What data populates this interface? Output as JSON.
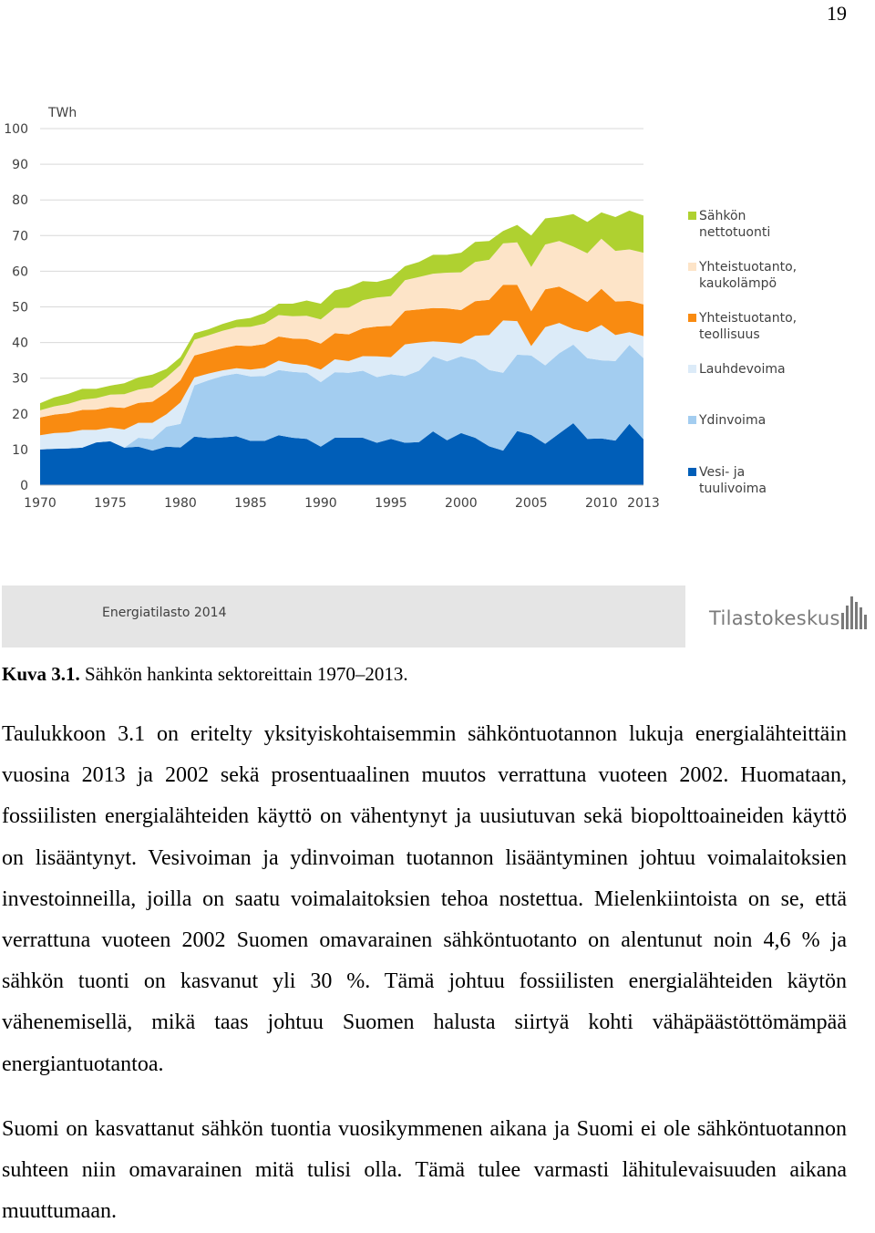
{
  "page_number": "19",
  "figure": {
    "source_label": "Energiatilasto 2014",
    "logo_text": "Tilastokeskus",
    "caption_label": "Kuva 3.1.",
    "caption_text": " Sähkön hankinta sektoreittain 1970–2013."
  },
  "chart_data": {
    "type": "area",
    "stacked": true,
    "title": "",
    "ylabel": "TWh",
    "xlabel": "",
    "ylim": [
      0,
      100
    ],
    "yticks": [
      0,
      10,
      20,
      30,
      40,
      50,
      60,
      70,
      80,
      90,
      100
    ],
    "xticks": [
      1970,
      1975,
      1980,
      1985,
      1990,
      1995,
      2000,
      2005,
      2010,
      2013
    ],
    "xlim": [
      1970,
      2013
    ],
    "grid": "horizontal",
    "legend_position": "right",
    "x": [
      1970,
      1971,
      1972,
      1973,
      1974,
      1975,
      1976,
      1977,
      1978,
      1979,
      1980,
      1981,
      1982,
      1983,
      1984,
      1985,
      1986,
      1987,
      1988,
      1989,
      1990,
      1991,
      1992,
      1993,
      1994,
      1995,
      1996,
      1997,
      1998,
      1999,
      2000,
      2001,
      2002,
      2003,
      2004,
      2005,
      2006,
      2007,
      2008,
      2009,
      2010,
      2011,
      2012,
      2013
    ],
    "series": [
      {
        "name": "Vesi- ja tuulivoima",
        "color": "#005eb8",
        "values": [
          10,
          10.2,
          10.3,
          10.5,
          12,
          12.3,
          10.5,
          10.8,
          9.7,
          10.8,
          10.6,
          13.6,
          13.2,
          13.4,
          13.7,
          12.4,
          12.4,
          14.0,
          13.3,
          13.0,
          10.8,
          13.3,
          13.3,
          13.3,
          11.9,
          13.0,
          11.9,
          12.1,
          15.1,
          12.6,
          14.6,
          13.3,
          10.9,
          9.7,
          15.2,
          14.1,
          11.6,
          14.5,
          17.4,
          13.0,
          13.1,
          12.5,
          17.2,
          12.9
        ]
      },
      {
        "name": "Ydinvoima",
        "color": "#a3cdf0",
        "values": [
          0,
          0,
          0,
          0,
          0,
          0,
          0,
          2.5,
          3.2,
          5.6,
          6.6,
          14.4,
          16.2,
          17.2,
          17.6,
          18.1,
          18.2,
          18.3,
          18.5,
          18.5,
          18.1,
          18.4,
          18.2,
          18.8,
          18.4,
          18.1,
          18.7,
          20.0,
          21.0,
          22.1,
          21.5,
          21.8,
          21.4,
          21.8,
          21.4,
          22.3,
          22.0,
          22.5,
          22.0,
          22.6,
          21.9,
          22.3,
          22.1,
          22.7
        ]
      },
      {
        "name": "Lauhdevoima",
        "color": "#dcebf8",
        "values": [
          4,
          4.4,
          4.5,
          5.0,
          3.5,
          3.8,
          5.1,
          4.2,
          4.6,
          3.5,
          6.0,
          2.2,
          1.9,
          1.6,
          1.5,
          1.9,
          2.3,
          2.6,
          2.3,
          2.2,
          3.5,
          3.6,
          3.3,
          4.1,
          5.8,
          4.8,
          8.9,
          7.9,
          4.2,
          5.4,
          3.6,
          6.8,
          9.8,
          14.7,
          9.4,
          2.6,
          10.7,
          8.5,
          4.4,
          7.3,
          9.9,
          7.3,
          3.6,
          6.2
        ]
      },
      {
        "name": "Yhteistuotanto, teollisuus",
        "color": "#f98b11",
        "values": [
          5,
          5.2,
          5.4,
          5.6,
          5.7,
          5.8,
          6.1,
          5.6,
          5.9,
          6.1,
          6.2,
          6.2,
          6.1,
          6.2,
          6.4,
          6.6,
          6.7,
          6.8,
          7.0,
          7.3,
          7.3,
          7.3,
          7.5,
          7.8,
          8.4,
          8.8,
          9.4,
          9.3,
          9.4,
          9.5,
          9.4,
          9.7,
          9.9,
          10.0,
          10.2,
          9.8,
          10.6,
          10.2,
          9.9,
          8.5,
          10.2,
          9.4,
          8.8,
          8.9
        ]
      },
      {
        "name": "Yhteistuotanto, kaukolämpö",
        "color": "#fde4c8",
        "values": [
          2,
          2.3,
          2.6,
          2.9,
          3.2,
          3.5,
          3.8,
          3.7,
          4.0,
          4.2,
          4.3,
          4.4,
          4.6,
          4.9,
          5.1,
          5.4,
          5.7,
          6.0,
          6.3,
          6.5,
          6.8,
          7.1,
          7.5,
          7.9,
          8.1,
          8.3,
          8.6,
          9.1,
          9.6,
          10.0,
          10.6,
          11.0,
          11.2,
          11.6,
          11.9,
          12.4,
          12.6,
          12.8,
          13.2,
          13.6,
          14.0,
          14.2,
          14.4,
          14.5
        ]
      },
      {
        "name": "Sähkön nettotuonti",
        "color": "#afd130",
        "values": [
          2,
          2.5,
          2.8,
          3.0,
          2.6,
          2.5,
          3.1,
          3.4,
          3.6,
          2.4,
          2.2,
          1.8,
          1.7,
          1.9,
          2.1,
          2.5,
          3.0,
          3.2,
          3.5,
          4.3,
          4.4,
          4.9,
          5.7,
          5.3,
          4.4,
          5.0,
          3.9,
          4.2,
          5.3,
          5.0,
          5.5,
          5.6,
          5.3,
          3.5,
          4.9,
          8.8,
          7.3,
          6.8,
          9.1,
          8.8,
          7.4,
          9.5,
          10.9,
          10.4
        ]
      }
    ]
  }
}
